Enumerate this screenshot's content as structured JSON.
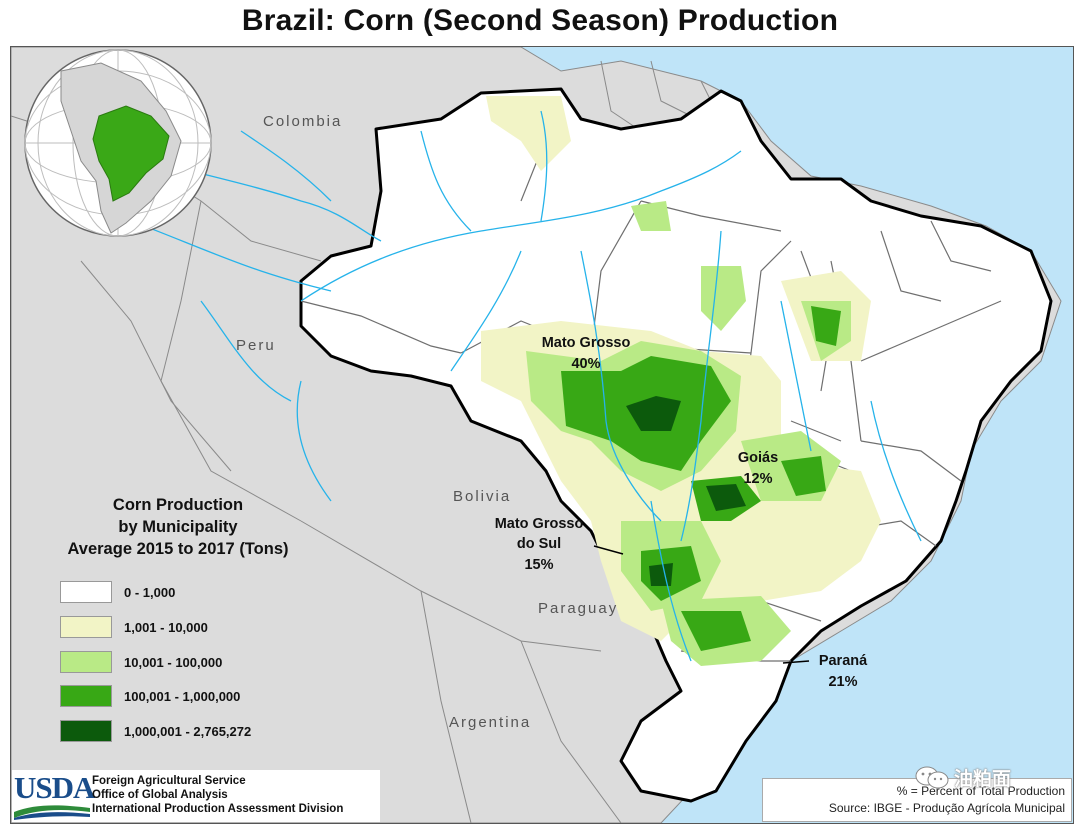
{
  "title": "Brazil: Corn (Second Season) Production",
  "countries": {
    "colombia": "Colombia",
    "peru": "Peru",
    "bolivia": "Bolivia",
    "paraguay": "Paraguay",
    "argentina": "Argentina"
  },
  "states": [
    {
      "name": "Mato Grosso",
      "share": "40%"
    },
    {
      "name": "Goiás",
      "share": "12%"
    },
    {
      "name": "Mato Grosso do Sul",
      "name_line1": "Mato Grosso",
      "name_line2": "do Sul",
      "share": "15%"
    },
    {
      "name": "Paraná",
      "share": "21%"
    }
  ],
  "legend": {
    "title_line1": "Corn Production",
    "title_line2": "by Municipality",
    "title_line3": "Average 2015 to 2017 (Tons)",
    "classes": [
      {
        "label": "0 - 1,000",
        "color": "#ffffff"
      },
      {
        "label": "1,001 - 10,000",
        "color": "#f2f4c6"
      },
      {
        "label": "10,001 - 100,000",
        "color": "#b9ea86"
      },
      {
        "label": "100,001 - 1,000,000",
        "color": "#38a815"
      },
      {
        "label": "1,000,001 - 2,765,272",
        "color": "#0c5a0c"
      }
    ]
  },
  "colors": {
    "ocean": "#bfe4f8",
    "neighbor_land": "#dcdcdc",
    "brazil_land": "#ffffff",
    "river": "#26b3ea",
    "highlight_globe": "#3aa817"
  },
  "footer": {
    "usda_logo": "USDA",
    "agency_line1": "Foreign Agricultural Service",
    "agency_line2": "Office of Global Analysis",
    "agency_line3": "International Production Assessment Division",
    "note": "% = Percent of Total Production",
    "source": "Source: IBGE - Produção Agrícola Municipal"
  },
  "watermark": "油粕面"
}
